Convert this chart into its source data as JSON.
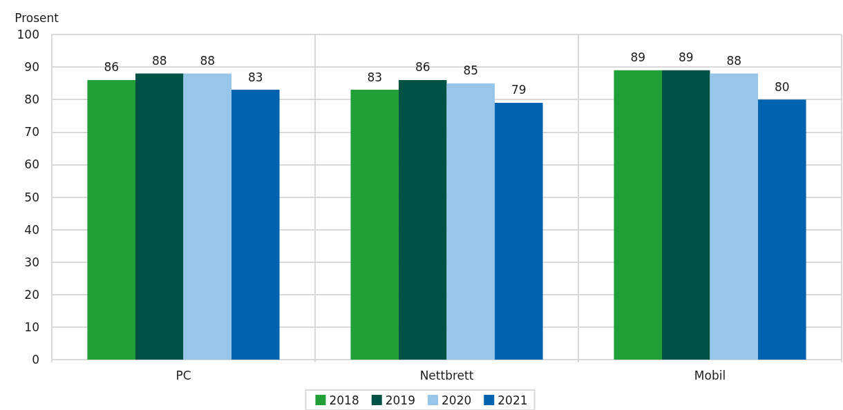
{
  "chart_data": {
    "type": "bar",
    "ylabel": "Prosent",
    "categories": [
      "PC",
      "Nettbrett",
      "Mobil"
    ],
    "series": [
      {
        "name": "2018",
        "color": "#21a038",
        "values": [
          86,
          83,
          89
        ]
      },
      {
        "name": "2019",
        "color": "#005344",
        "values": [
          88,
          86,
          89
        ]
      },
      {
        "name": "2020",
        "color": "#98c6ea",
        "values": [
          88,
          85,
          88
        ]
      },
      {
        "name": "2021",
        "color": "#0063af",
        "values": [
          83,
          79,
          80
        ]
      }
    ],
    "ylim": [
      0,
      100
    ],
    "yticks": [
      0,
      10,
      20,
      30,
      40,
      50,
      60,
      70,
      80,
      90,
      100
    ],
    "grid": true,
    "legend": "bottom",
    "data_labels": true
  }
}
